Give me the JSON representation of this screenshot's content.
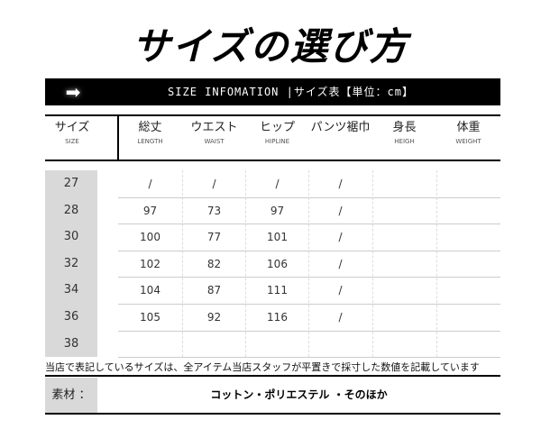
{
  "title": "サイズの選び方",
  "banner": {
    "icon": "right-arrow-icon",
    "text": "SIZE INFOMATION |サイズ表【単位：cm】"
  },
  "columns": [
    {
      "jp": "サイズ",
      "en": "SIZE"
    },
    {
      "jp": "総丈",
      "en": "LENGTH"
    },
    {
      "jp": "ウエスト",
      "en": "WAIST"
    },
    {
      "jp": "ヒップ",
      "en": "HIPLINE"
    },
    {
      "jp": "パンツ裾巾",
      "en": ""
    },
    {
      "jp": "身長",
      "en": "HEIGH"
    },
    {
      "jp": "体重",
      "en": "WEIGHT"
    }
  ],
  "rows": [
    {
      "size": "27",
      "values": [
        "/",
        "/",
        "/",
        "/",
        "",
        ""
      ]
    },
    {
      "size": "28",
      "values": [
        "97",
        "73",
        "97",
        "/",
        "",
        ""
      ]
    },
    {
      "size": "30",
      "values": [
        "100",
        "77",
        "101",
        "/",
        "",
        ""
      ]
    },
    {
      "size": "32",
      "values": [
        "102",
        "82",
        "106",
        "/",
        "",
        ""
      ]
    },
    {
      "size": "34",
      "values": [
        "104",
        "87",
        "111",
        "/",
        "",
        ""
      ]
    },
    {
      "size": "36",
      "values": [
        "105",
        "92",
        "116",
        "/",
        "",
        ""
      ]
    },
    {
      "size": "38",
      "values": [
        "",
        "",
        "",
        "",
        "",
        ""
      ]
    }
  ],
  "note": "当店で表記しているサイズは、全アイテム当店スタッフが平置きで採寸した数値を記載しています",
  "material": {
    "label": "素材 ：",
    "value": "コットン・ポリエステル ・そのほか"
  }
}
